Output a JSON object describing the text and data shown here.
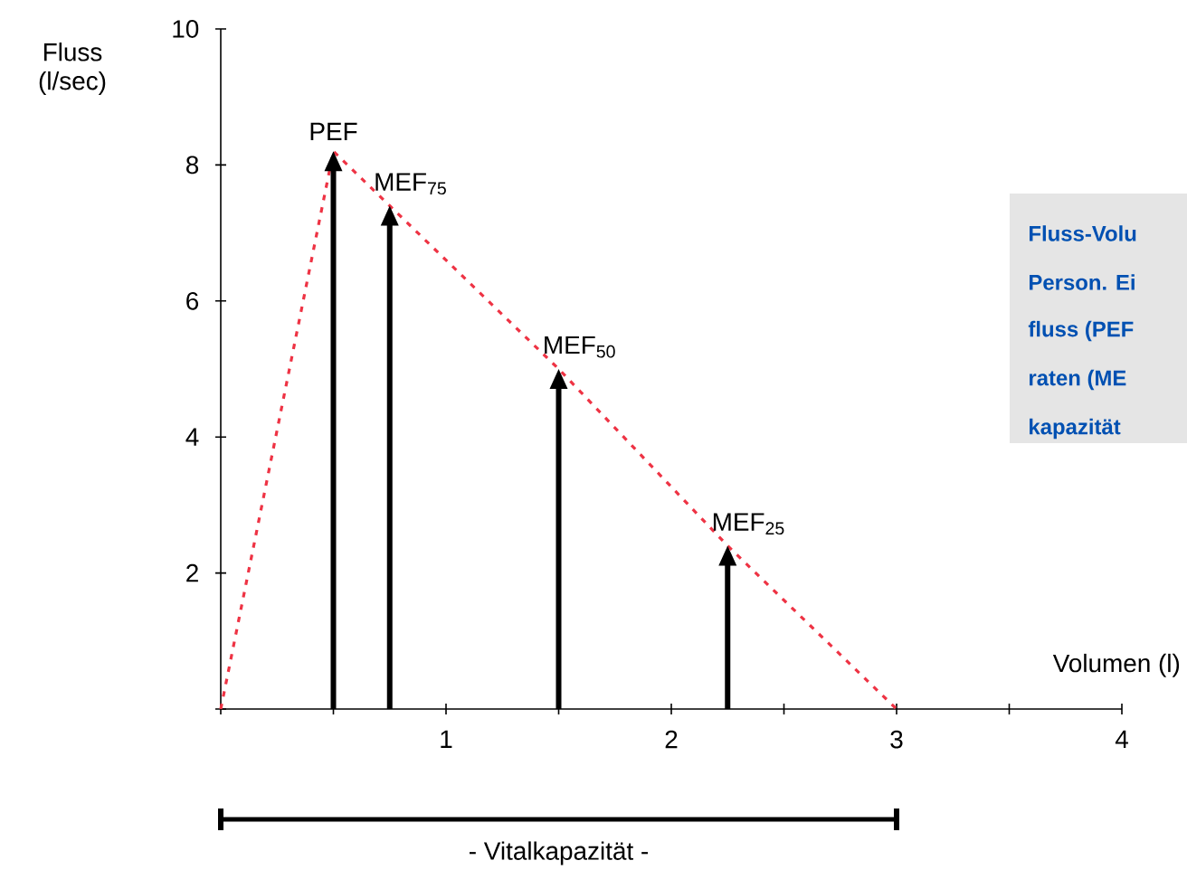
{
  "chart_data": {
    "type": "line",
    "xlabel": "Volumen (l)",
    "ylabel": "Fluss (l/sec)",
    "x": [
      0,
      0.5,
      0.75,
      1.5,
      2.25,
      3
    ],
    "series": [
      {
        "color": "#ee3344",
        "values": [
          0,
          8.2,
          7.4,
          5.0,
          2.4,
          0
        ]
      }
    ],
    "line_style": "dashed",
    "marker": "none",
    "xlim": [
      0,
      4
    ],
    "ylim": [
      0,
      10
    ],
    "xticks": [
      {
        "value": 0,
        "label": null
      },
      {
        "value": 0.5,
        "label": null
      },
      1,
      {
        "value": 1.5,
        "label": null
      },
      2,
      {
        "value": 2.5,
        "label": null
      },
      3,
      {
        "value": 3.5,
        "label": null
      },
      4
    ],
    "yticks": [
      {
        "value": 0,
        "label": null
      },
      2,
      4,
      6,
      8,
      10
    ],
    "annotations": [
      {
        "text": "PEF",
        "x": 0.5,
        "y": 8.2
      },
      {
        "text": "MEF$_{75}$",
        "x": 0.75,
        "y": 7.4
      },
      {
        "text": "MEF$_{50}$",
        "x": 1.5,
        "y": 5.0
      },
      {
        "text": "MEF$_{25}$",
        "x": 2.25,
        "y": 2.4
      },
      "- Vitalkapazität -",
      "Fluss-Volu",
      "Person. Ei",
      "fluss (PEF",
      "raten (ME",
      "kapazität"
    ]
  }
}
